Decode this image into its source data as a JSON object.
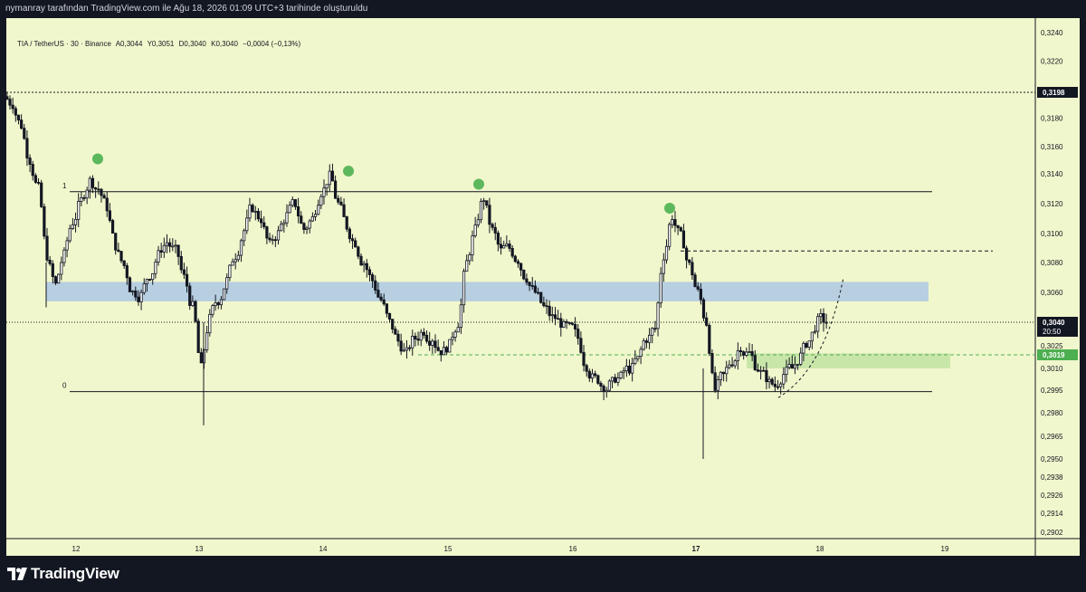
{
  "header": {
    "caption": "nymanray tarafından TradingView.com ile Ağu 18, 2026 01:09 UTC+3 tarihinde oluşturuldu"
  },
  "legend": {
    "symbol": "TIA / TetherUS · 30 · Binance",
    "open": "A0,3044",
    "high": "Y0,3051",
    "low": "D0,3040",
    "close": "K0,3040",
    "change": "−0,0004 (−0,13%)"
  },
  "footer": {
    "brand": "TradingView"
  },
  "colors": {
    "background": "#f1f7cc",
    "candle": "#131722",
    "resistance_zone": "#b7cfe0",
    "support_zone": "#c9e6a9",
    "marker": "#5cb85c",
    "price_label_dark": "#131722",
    "price_label_green": "#4caf50"
  },
  "chart_data": {
    "type": "candlestick",
    "x_ticks": [
      "12",
      "13",
      "14",
      "15",
      "16",
      "17",
      "18",
      "19"
    ],
    "x_tick_bold": "17",
    "y_ticks": [
      "0,3240",
      "0,3220",
      "0,3198",
      "0,3180",
      "0,3160",
      "0,3140",
      "0,3120",
      "0,3100",
      "0,3080",
      "0,3060",
      "0,3040",
      "0,3025",
      "0,3019",
      "0,3010",
      "0,2995",
      "0,2980",
      "0,2965",
      "0,2950",
      "0,2938",
      "0,2926",
      "0,2914",
      "0,2902"
    ],
    "y_tick_values": [
      0.324,
      0.322,
      0.3198,
      0.318,
      0.316,
      0.314,
      0.312,
      0.31,
      0.308,
      0.306,
      0.304,
      0.3025,
      0.3019,
      0.301,
      0.2995,
      0.298,
      0.2965,
      0.295,
      0.2938,
      0.2926,
      0.2914,
      0.2902
    ],
    "fib_labels": {
      "level_1": "1",
      "level_0": "0"
    },
    "fib_levels": {
      "level_1": 0.3128,
      "level_0": 0.2994
    },
    "last_price_label": {
      "price": "0,3040",
      "countdown": "20:50"
    },
    "marked_high_label": "0,3198",
    "support_label": "0,3019",
    "resistance_zone": [
      0.3054,
      0.3067
    ],
    "support_zone": [
      0.301,
      0.302
    ],
    "dashed_level": 0.3088,
    "peak_markers": [
      0.3151,
      0.3142,
      0.3133,
      0.3117
    ],
    "approx_closes": [
      0.319,
      0.3175,
      0.315,
      0.313,
      0.3085,
      0.3065,
      0.3085,
      0.3108,
      0.3122,
      0.3135,
      0.313,
      0.3118,
      0.3092,
      0.3078,
      0.306,
      0.3058,
      0.3072,
      0.3085,
      0.3094,
      0.3088,
      0.307,
      0.305,
      0.301,
      0.3042,
      0.3055,
      0.3068,
      0.3085,
      0.3102,
      0.3118,
      0.311,
      0.3092,
      0.31,
      0.3112,
      0.312,
      0.3103,
      0.311,
      0.3128,
      0.3138,
      0.312,
      0.3105,
      0.3094,
      0.308,
      0.3068,
      0.3055,
      0.304,
      0.3028,
      0.302,
      0.303,
      0.3035,
      0.303,
      0.3022,
      0.3025,
      0.304,
      0.308,
      0.3102,
      0.3124,
      0.3102,
      0.3088,
      0.309,
      0.3082,
      0.307,
      0.306,
      0.305,
      0.3043,
      0.304,
      0.3036,
      0.303,
      0.3012,
      0.3003,
      0.2998,
      0.3,
      0.3004,
      0.301,
      0.3016,
      0.303,
      0.3036,
      0.3085,
      0.3112,
      0.3098,
      0.3078,
      0.306,
      0.304,
      0.2995,
      0.3005,
      0.3015,
      0.3025,
      0.302,
      0.301,
      0.3004,
      0.2998,
      0.3006,
      0.301,
      0.3018,
      0.3028,
      0.304,
      0.304
    ]
  }
}
